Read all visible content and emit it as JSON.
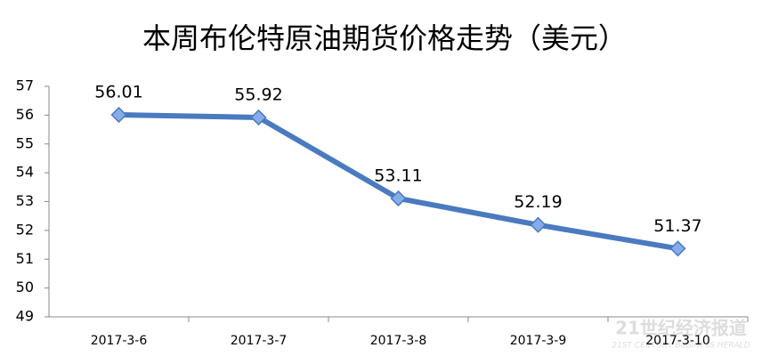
{
  "chart_data": {
    "type": "line",
    "title": "本周布伦特原油期货价格走势（美元）",
    "categories": [
      "2017-3-6",
      "2017-3-7",
      "2017-3-8",
      "2017-3-9",
      "2017-3-10"
    ],
    "series": [
      {
        "name": "布伦特原油期货价格",
        "color": "#4a7ac0",
        "values": [
          56.01,
          55.92,
          53.11,
          52.19,
          51.37
        ]
      }
    ],
    "ylim": [
      49,
      57
    ],
    "yticks": [
      49,
      50,
      51,
      52,
      53,
      54,
      55,
      56,
      57
    ],
    "grid": false,
    "legend": false
  },
  "watermark": {
    "title": "21世纪经济报道",
    "subtitle": "21ST CENTURY BUSINESS HERALD"
  }
}
